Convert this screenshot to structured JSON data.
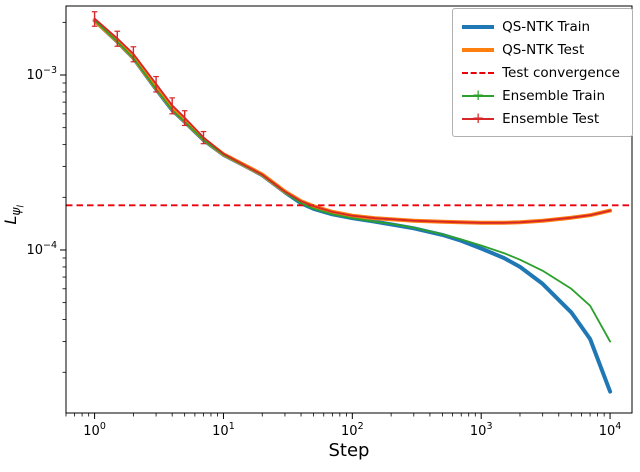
{
  "figure": {
    "xlabel": "Step",
    "ylabel": {
      "base": "L",
      "sub": "ψ",
      "subsub": "l"
    }
  },
  "chart_data": {
    "type": "line",
    "title": "",
    "xlabel": "Step",
    "ylabel": "L_{psi_l}",
    "x_scale": "log",
    "y_scale": "log",
    "grid": false,
    "legend_position": "upper right",
    "xlim": [
      0.6,
      14800
    ],
    "ylim": [
      1.17e-05,
      0.00248
    ],
    "x_tick_exponents": [
      0,
      1,
      2,
      3,
      4
    ],
    "y_tick_exponents": [
      -3,
      -4
    ],
    "x_tick_labels": [
      "10^0",
      "10^1",
      "10^2",
      "10^3",
      "10^4"
    ],
    "y_tick_labels": [
      "10^-3",
      "10^-4"
    ],
    "x": [
      1,
      1.5,
      2,
      3,
      4,
      5,
      7,
      10,
      15,
      20,
      30,
      40,
      50,
      70,
      100,
      150,
      200,
      300,
      500,
      700,
      1000,
      1500,
      2000,
      3000,
      5000,
      7000,
      10000
    ],
    "series": [
      {
        "name": "QS-NTK Train",
        "color": "#1f77b4",
        "style": "solid",
        "lw": 4,
        "y": [
          0.00205,
          0.00155,
          0.00125,
          0.00083,
          0.00063,
          0.00054,
          0.000425,
          0.00035,
          0.0003,
          0.000268,
          0.000214,
          0.000185,
          0.000172,
          0.00016,
          0.000152,
          0.000145,
          0.00014,
          0.000133,
          0.000122,
          0.000113,
          0.000102,
          9e-05,
          8e-05,
          6.4e-05,
          4.4e-05,
          3.1e-05,
          1.55e-05
        ]
      },
      {
        "name": "QS-NTK Test",
        "color": "#ff7f0e",
        "style": "solid",
        "lw": 4,
        "y": [
          0.00205,
          0.00156,
          0.00126,
          0.00084,
          0.00064,
          0.000545,
          0.00043,
          0.000352,
          0.000302,
          0.00027,
          0.000216,
          0.00019,
          0.000178,
          0.000165,
          0.000157,
          0.000152,
          0.00015,
          0.000147,
          0.000145,
          0.000144,
          0.000143,
          0.000143,
          0.000144,
          0.000147,
          0.000153,
          0.000158,
          0.000168
        ]
      },
      {
        "name": "Test convergence",
        "color": "#e8000b",
        "style": "dashed",
        "lw": 1.8,
        "const_y": 0.00018
      },
      {
        "name": "Ensemble Train",
        "color": "#2ca02c",
        "style": "solid",
        "marker": "+",
        "lw": 1.8,
        "y": [
          0.00205,
          0.00155,
          0.00125,
          0.00083,
          0.00063,
          0.00054,
          0.000425,
          0.00035,
          0.0003,
          0.000268,
          0.000214,
          0.000185,
          0.000172,
          0.00016,
          0.000152,
          0.000145,
          0.000141,
          0.000134,
          0.000123,
          0.000115,
          0.000106,
          9.6e-05,
          8.8e-05,
          7.6e-05,
          6e-05,
          4.8e-05,
          3e-05
        ]
      },
      {
        "name": "Ensemble Test",
        "color": "#d62728",
        "style": "solid",
        "marker": "+",
        "lw": 1.8,
        "y": [
          0.0021,
          0.00162,
          0.00132,
          0.00089,
          0.00067,
          0.00057,
          0.00044,
          0.000355,
          0.000302,
          0.00027,
          0.000216,
          0.00019,
          0.000178,
          0.000165,
          0.000157,
          0.000152,
          0.00015,
          0.000147,
          0.000145,
          0.000144,
          0.000143,
          0.000143,
          0.000144,
          0.000147,
          0.000153,
          0.000158,
          0.000168
        ],
        "yerr": [
          0.0002,
          0.00016,
          0.00013,
          9e-05,
          7e-05,
          5.5e-05,
          3.5e-05,
          0,
          0,
          0,
          0,
          0,
          0,
          0,
          0,
          0,
          0,
          0,
          0,
          0,
          0,
          0,
          0,
          0,
          0,
          0,
          0
        ]
      }
    ]
  }
}
